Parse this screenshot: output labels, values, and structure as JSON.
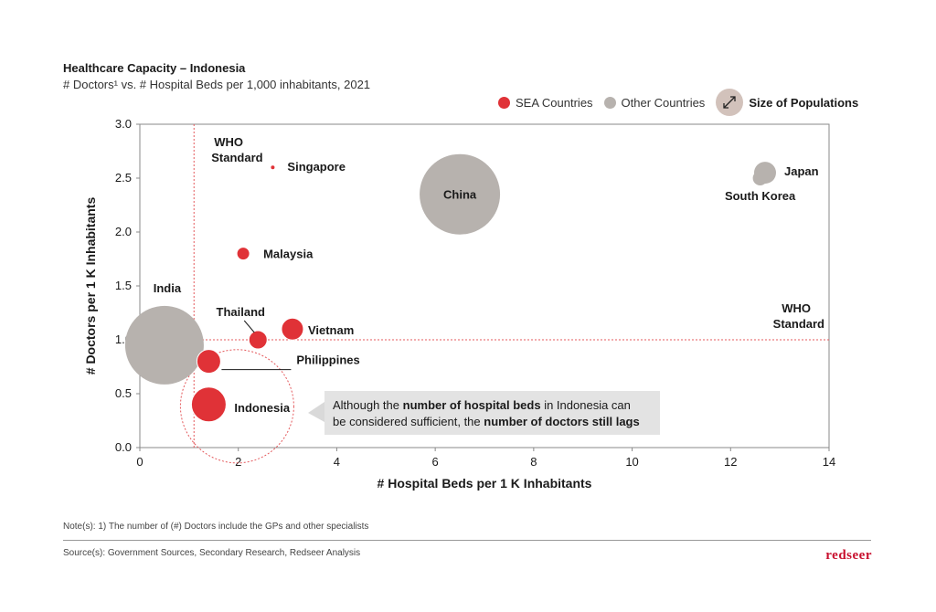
{
  "chart_data": {
    "type": "scatter",
    "title": "Healthcare Capacity – Indonesia",
    "subtitle": "# Doctors¹ vs. # Hospital Beds per 1,000 inhabitants, 2021",
    "xlabel": "# Hospital Beds per 1 K Inhabitants",
    "ylabel": "# Doctors per 1 K Inhabitants",
    "xlim": [
      0,
      14
    ],
    "ylim": [
      0,
      3.0
    ],
    "x_ticks": [
      "0",
      "2",
      "4",
      "6",
      "8",
      "10",
      "12",
      "14"
    ],
    "y_ticks": [
      "0.0",
      "0.5",
      "1.0",
      "1.5",
      "2.0",
      "2.5",
      "3.0"
    ],
    "legend_position": "top-right",
    "legend": {
      "sea": "SEA Countries",
      "other": "Other Countries",
      "size": "Size of Populations"
    },
    "colors": {
      "sea": "#e03237",
      "other": "#b7b2ae",
      "size_icon": "#d2c2bb"
    },
    "points": [
      {
        "name": "Singapore",
        "x": 2.7,
        "y": 2.6,
        "group": "sea",
        "size": 1
      },
      {
        "name": "Malaysia",
        "x": 2.1,
        "y": 1.8,
        "group": "sea",
        "size": 7
      },
      {
        "name": "Thailand",
        "x": 2.4,
        "y": 1.0,
        "group": "sea",
        "size": 10
      },
      {
        "name": "Vietnam",
        "x": 3.1,
        "y": 1.1,
        "group": "sea",
        "size": 12
      },
      {
        "name": "Philippines",
        "x": 1.4,
        "y": 0.8,
        "group": "sea",
        "size": 13
      },
      {
        "name": "Indonesia",
        "x": 1.4,
        "y": 0.4,
        "group": "sea",
        "size": 19
      },
      {
        "name": "China",
        "x": 6.5,
        "y": 2.35,
        "group": "other",
        "size": 44
      },
      {
        "name": "India",
        "x": 0.5,
        "y": 0.95,
        "group": "other",
        "size": 43
      },
      {
        "name": "Japan",
        "x": 12.7,
        "y": 2.55,
        "group": "other",
        "size": 12
      },
      {
        "name": "South Korea",
        "x": 12.6,
        "y": 2.5,
        "group": "other",
        "size": 8
      }
    ],
    "reference_lines": {
      "vertical_x": 1.1,
      "horizontal_y": 1.0,
      "vertical_label": [
        "WHO",
        "Standard"
      ],
      "horizontal_label": [
        "WHO",
        "Standard"
      ]
    },
    "annotation": {
      "parts": [
        {
          "text": "Although the ",
          "bold": false
        },
        {
          "text": "number of hospital beds",
          "bold": true
        },
        {
          "text": " in Indonesia can",
          "bold": false
        },
        {
          "text": "\n",
          "bold": false
        },
        {
          "text": "be considered sufficient, the ",
          "bold": false
        },
        {
          "text": "number of doctors still lags",
          "bold": true
        }
      ]
    }
  },
  "footer": {
    "note": "Note(s): 1) The number of (#) Doctors include the GPs and other specialists",
    "source": "Source(s): Government Sources, Secondary Research, Redseer Analysis",
    "brand": "redseer"
  }
}
